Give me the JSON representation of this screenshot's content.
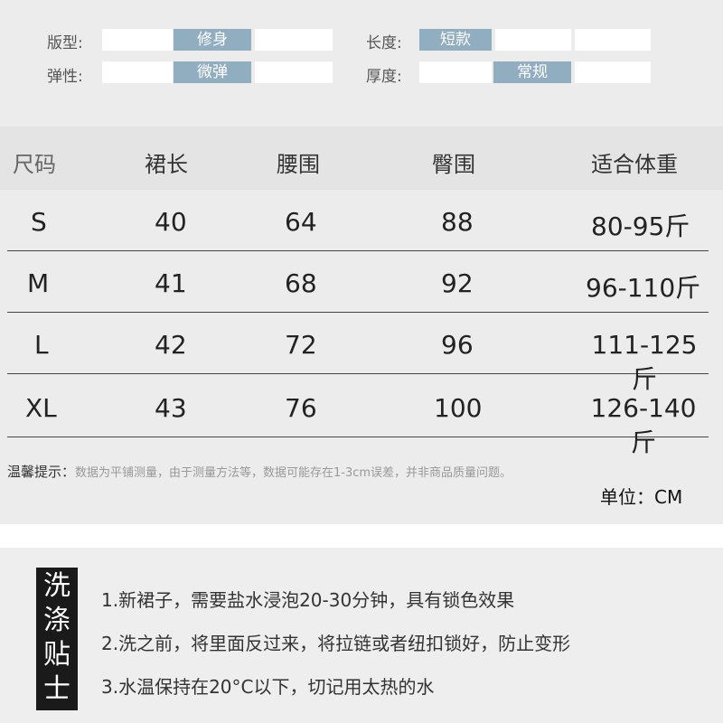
{
  "attributes": [
    {
      "label": "版型:",
      "options": [
        "",
        "修身",
        ""
      ],
      "selected": 1
    },
    {
      "label": "弹性:",
      "options": [
        "",
        "微弹",
        ""
      ],
      "selected": 1
    },
    {
      "label": "长度:",
      "options": [
        "短款",
        "",
        ""
      ],
      "selected": 0
    },
    {
      "label": "厚度:",
      "options": [
        "",
        "常规",
        ""
      ],
      "selected": 1
    }
  ],
  "table": {
    "headers": [
      "尺码",
      "裙长",
      "腰围",
      "臀围",
      "适合体重"
    ],
    "rows": [
      [
        "S",
        "40",
        "64",
        "88",
        "80-95斤"
      ],
      [
        "M",
        "41",
        "68",
        "92",
        "96-110斤"
      ],
      [
        "L",
        "42",
        "72",
        "96",
        "111-125斤"
      ],
      [
        "XL",
        "43",
        "76",
        "100",
        "126-140斤"
      ]
    ]
  },
  "note": {
    "label": "温馨提示：",
    "text": "数据为平铺测量，由于测量方法等，数据可能存在1-3cm误差，并非商品质量问题。"
  },
  "unit": "单位：CM",
  "wash": {
    "title": "洗涤贴士",
    "tips": [
      "1.新裙子，需要盐水浸泡20-30分钟，具有锁色效果",
      "2.洗之前，将里面反过来，将拉链或者纽扣锁好，防止变形",
      "3.水温保持在20°C以下，切记用太热的水"
    ]
  },
  "colors": {
    "selected": "#91adc0",
    "background": "#ececec"
  }
}
